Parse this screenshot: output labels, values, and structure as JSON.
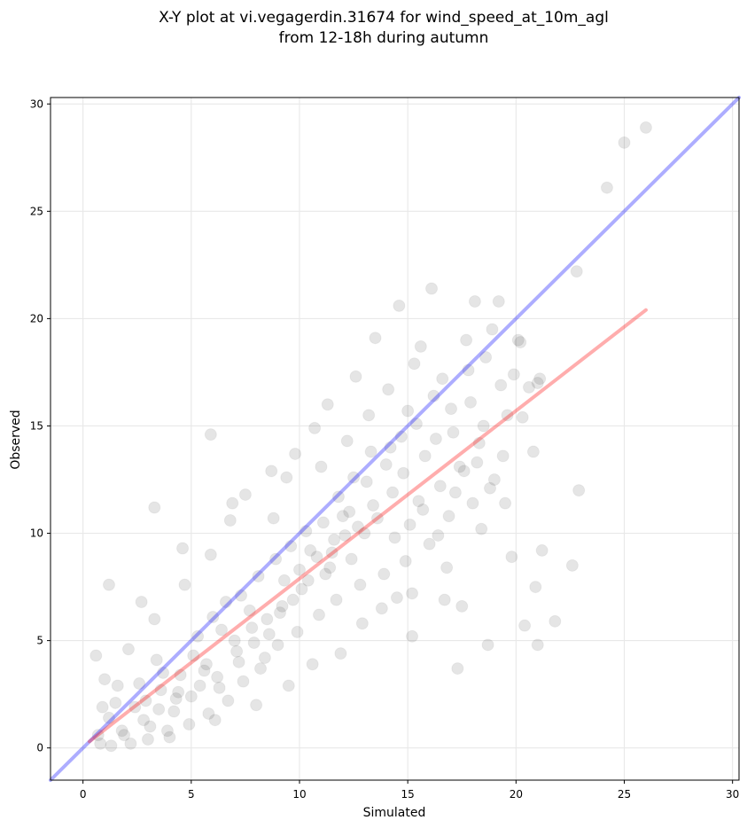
{
  "chart_data": {
    "type": "scatter",
    "title": [
      "X-Y plot at vi.vegagerdin.31674 for wind_speed_at_10m_agl",
      "from 12-18h during autumn"
    ],
    "xlabel": "Simulated",
    "ylabel": "Observed",
    "xlim": [
      -1.5,
      30.3
    ],
    "ylim": [
      -1.5,
      30.3
    ],
    "xticks": [
      0,
      5,
      10,
      15,
      20,
      25,
      30
    ],
    "yticks": [
      0,
      5,
      10,
      15,
      20,
      25,
      30
    ],
    "grid": true,
    "legend": "none",
    "colors": {
      "points": "#000000",
      "identity_line": "#0000ff",
      "fit_line": "#ff0000",
      "grid": "#e8e8e8",
      "axes": "#000000"
    },
    "series": [
      {
        "type": "scatter",
        "points": [
          [
            0.7,
            0.6
          ],
          [
            1.2,
            1.4
          ],
          [
            1.8,
            0.8
          ],
          [
            2.4,
            1.9
          ],
          [
            3.1,
            1.0
          ],
          [
            3.6,
            2.7
          ],
          [
            4.2,
            1.7
          ],
          [
            5.0,
            2.4
          ],
          [
            5.6,
            3.6
          ],
          [
            6.3,
            2.8
          ],
          [
            7.1,
            4.5
          ],
          [
            7.8,
            5.6
          ],
          [
            8.4,
            4.2
          ],
          [
            9.2,
            6.6
          ],
          [
            10.1,
            7.4
          ],
          [
            10.8,
            8.9
          ],
          [
            11.6,
            9.7
          ],
          [
            12.3,
            11.0
          ],
          [
            13.1,
            12.4
          ],
          [
            14.0,
            13.2
          ],
          [
            14.7,
            14.5
          ],
          [
            15.4,
            15.1
          ],
          [
            16.2,
            16.4
          ],
          [
            17.0,
            15.8
          ],
          [
            17.8,
            17.6
          ],
          [
            18.6,
            18.2
          ],
          [
            19.3,
            16.9
          ],
          [
            20.1,
            19.0
          ],
          [
            2.1,
            4.6
          ],
          [
            3.3,
            6.0
          ],
          [
            4.7,
            7.6
          ],
          [
            5.9,
            9.0
          ],
          [
            6.8,
            10.6
          ],
          [
            7.5,
            11.8
          ],
          [
            8.7,
            12.9
          ],
          [
            9.8,
            13.7
          ],
          [
            10.7,
            14.9
          ],
          [
            11.3,
            16.0
          ],
          [
            12.6,
            17.3
          ],
          [
            13.5,
            19.1
          ],
          [
            14.6,
            20.6
          ],
          [
            15.6,
            18.7
          ],
          [
            16.1,
            21.4
          ],
          [
            18.1,
            20.8
          ],
          [
            19.2,
            20.8
          ],
          [
            4.0,
            0.5
          ],
          [
            6.1,
            1.3
          ],
          [
            8.0,
            2.0
          ],
          [
            9.5,
            2.9
          ],
          [
            10.6,
            3.9
          ],
          [
            11.9,
            4.4
          ],
          [
            12.9,
            5.8
          ],
          [
            13.8,
            6.5
          ],
          [
            15.2,
            7.2
          ],
          [
            16.7,
            6.9
          ],
          [
            18.4,
            10.2
          ],
          [
            19.8,
            8.9
          ],
          [
            20.9,
            7.5
          ],
          [
            22.6,
            8.5
          ],
          [
            21.8,
            5.9
          ],
          [
            20.4,
            5.7
          ],
          [
            18.7,
            4.8
          ],
          [
            17.3,
            3.7
          ],
          [
            21.0,
            4.8
          ],
          [
            25.0,
            28.2
          ],
          [
            26.0,
            28.9
          ],
          [
            24.2,
            26.1
          ],
          [
            22.8,
            22.2
          ],
          [
            22.9,
            12.0
          ],
          [
            21.2,
            9.2
          ],
          [
            17.5,
            6.6
          ],
          [
            15.2,
            5.2
          ],
          [
            1.0,
            3.2
          ],
          [
            1.5,
            2.1
          ],
          [
            2.6,
            3.0
          ],
          [
            3.4,
            4.1
          ],
          [
            4.5,
            3.4
          ],
          [
            5.3,
            5.2
          ],
          [
            6.0,
            6.1
          ],
          [
            6.6,
            6.8
          ],
          [
            7.3,
            7.1
          ],
          [
            8.1,
            8.0
          ],
          [
            8.9,
            8.8
          ],
          [
            9.6,
            9.4
          ],
          [
            10.3,
            10.1
          ],
          [
            11.1,
            10.5
          ],
          [
            11.8,
            11.7
          ],
          [
            12.5,
            12.6
          ],
          [
            13.3,
            13.8
          ],
          [
            14.2,
            14.0
          ],
          [
            15.0,
            15.7
          ],
          [
            15.8,
            13.6
          ],
          [
            16.5,
            12.2
          ],
          [
            17.4,
            13.1
          ],
          [
            18.3,
            14.2
          ],
          [
            19.6,
            15.5
          ],
          [
            20.6,
            16.8
          ],
          [
            21.1,
            17.2
          ],
          [
            20.8,
            13.8
          ],
          [
            19.0,
            12.5
          ],
          [
            18.0,
            11.4
          ],
          [
            16.9,
            10.8
          ],
          [
            16.0,
            9.5
          ],
          [
            14.9,
            8.7
          ],
          [
            13.9,
            8.1
          ],
          [
            12.8,
            7.6
          ],
          [
            11.7,
            6.9
          ],
          [
            10.9,
            6.2
          ],
          [
            9.9,
            5.4
          ],
          [
            9.0,
            4.8
          ],
          [
            8.2,
            3.7
          ],
          [
            7.4,
            3.1
          ],
          [
            6.7,
            2.2
          ],
          [
            5.8,
            1.6
          ],
          [
            4.9,
            1.1
          ],
          [
            3.9,
            0.8
          ],
          [
            3.0,
            0.4
          ],
          [
            2.2,
            0.2
          ],
          [
            1.3,
            0.1
          ],
          [
            0.9,
            1.9
          ],
          [
            1.6,
            2.9
          ],
          [
            2.9,
            2.2
          ],
          [
            3.7,
            3.5
          ],
          [
            4.4,
            2.6
          ],
          [
            5.1,
            4.3
          ],
          [
            5.7,
            3.9
          ],
          [
            6.4,
            5.5
          ],
          [
            7.0,
            5.0
          ],
          [
            7.7,
            6.4
          ],
          [
            8.5,
            6.0
          ],
          [
            9.3,
            7.8
          ],
          [
            10.0,
            8.3
          ],
          [
            10.5,
            9.2
          ],
          [
            11.4,
            8.4
          ],
          [
            12.1,
            9.9
          ],
          [
            12.7,
            10.3
          ],
          [
            13.4,
            11.3
          ],
          [
            14.3,
            11.9
          ],
          [
            14.8,
            12.8
          ],
          [
            15.5,
            11.5
          ],
          [
            16.3,
            14.4
          ],
          [
            17.1,
            14.7
          ],
          [
            17.9,
            16.1
          ],
          [
            18.5,
            15.0
          ],
          [
            19.4,
            13.6
          ],
          [
            20.3,
            15.4
          ],
          [
            5.9,
            14.6
          ],
          [
            3.3,
            11.2
          ],
          [
            1.2,
            7.6
          ],
          [
            0.6,
            4.3
          ],
          [
            2.7,
            6.8
          ],
          [
            4.6,
            9.3
          ],
          [
            6.9,
            11.4
          ],
          [
            8.8,
            10.7
          ],
          [
            9.4,
            12.6
          ],
          [
            11.0,
            13.1
          ],
          [
            12.2,
            14.3
          ],
          [
            13.2,
            15.5
          ],
          [
            14.1,
            16.7
          ],
          [
            15.3,
            17.9
          ],
          [
            16.6,
            17.2
          ],
          [
            17.7,
            19.0
          ],
          [
            18.9,
            19.5
          ],
          [
            20.2,
            18.9
          ],
          [
            21.0,
            17.0
          ],
          [
            19.9,
            17.4
          ],
          [
            0.8,
            0.2
          ],
          [
            1.9,
            0.6
          ],
          [
            2.8,
            1.3
          ],
          [
            3.5,
            1.8
          ],
          [
            4.3,
            2.3
          ],
          [
            5.4,
            2.9
          ],
          [
            6.2,
            3.3
          ],
          [
            7.2,
            4.0
          ],
          [
            7.9,
            4.9
          ],
          [
            8.6,
            5.3
          ],
          [
            9.1,
            6.3
          ],
          [
            9.7,
            6.9
          ],
          [
            10.4,
            7.8
          ],
          [
            11.2,
            8.1
          ],
          [
            11.5,
            9.1
          ],
          [
            12.0,
            10.8
          ],
          [
            12.4,
            8.8
          ],
          [
            13.0,
            10.0
          ],
          [
            13.6,
            10.7
          ],
          [
            14.4,
            9.8
          ],
          [
            15.1,
            10.4
          ],
          [
            15.7,
            11.1
          ],
          [
            16.4,
            9.9
          ],
          [
            17.2,
            11.9
          ],
          [
            17.6,
            12.9
          ],
          [
            18.2,
            13.3
          ],
          [
            18.8,
            12.1
          ],
          [
            19.5,
            11.4
          ],
          [
            16.8,
            8.4
          ],
          [
            14.5,
            7.0
          ]
        ]
      },
      {
        "type": "line",
        "name": "identity",
        "points": [
          [
            -1.5,
            -1.5
          ],
          [
            30.3,
            30.3
          ]
        ]
      },
      {
        "type": "line",
        "name": "fit",
        "points": [
          [
            0.3,
            0.3
          ],
          [
            26.0,
            20.4
          ]
        ]
      }
    ]
  }
}
